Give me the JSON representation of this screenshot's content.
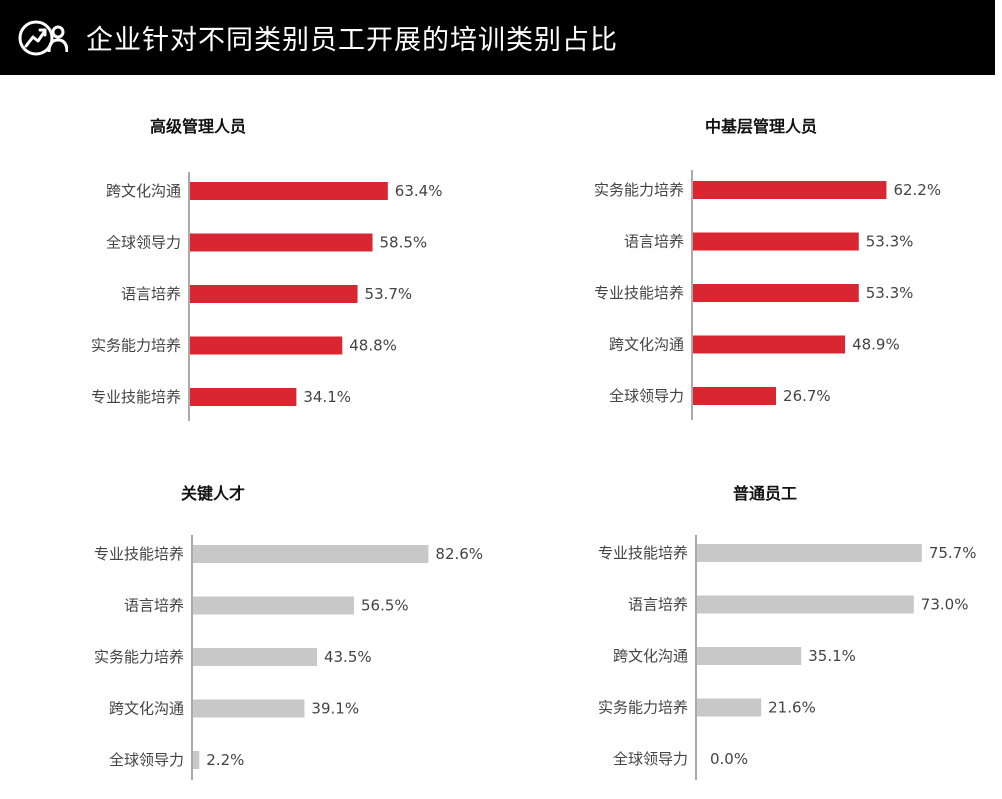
{
  "header": {
    "title": "企业针对不同类别员工开展的培训类别占比"
  },
  "colors": {
    "highlight": "#d92630",
    "neutral": "#c8c8c8",
    "header_bg": "#000000"
  },
  "chart_data": [
    {
      "type": "bar",
      "orientation": "horizontal",
      "title": "高级管理人员",
      "categories": [
        "跨文化沟通",
        "全球领导力",
        "语言培养",
        "实务能力培养",
        "专业技能培养"
      ],
      "values": [
        63.4,
        58.5,
        53.7,
        48.8,
        34.1
      ],
      "labels": [
        "63.4%",
        "58.5%",
        "53.7%",
        "48.8%",
        "34.1%"
      ],
      "color": "#d92630"
    },
    {
      "type": "bar",
      "orientation": "horizontal",
      "title": "中基层管理人员",
      "categories": [
        "实务能力培养",
        "语言培养",
        "专业技能培养",
        "跨文化沟通",
        "全球领导力"
      ],
      "values": [
        62.2,
        53.3,
        53.3,
        48.9,
        26.7
      ],
      "labels": [
        "62.2%",
        "53.3%",
        "53.3%",
        "48.9%",
        "26.7%"
      ],
      "color": "#d92630"
    },
    {
      "type": "bar",
      "orientation": "horizontal",
      "title": "关键人才",
      "categories": [
        "专业技能培养",
        "语言培养",
        "实务能力培养",
        "跨文化沟通",
        "全球领导力"
      ],
      "values": [
        82.6,
        56.5,
        43.5,
        39.1,
        2.2
      ],
      "labels": [
        "82.6%",
        "56.5%",
        "43.5%",
        "39.1%",
        "2.2%"
      ],
      "color": "#c8c8c8"
    },
    {
      "type": "bar",
      "orientation": "horizontal",
      "title": "普通员工",
      "categories": [
        "专业技能培养",
        "语言培养",
        "跨文化沟通",
        "实务能力培养",
        "全球领导力"
      ],
      "values": [
        75.7,
        73.0,
        35.1,
        21.6,
        0.0
      ],
      "labels": [
        "75.7%",
        "73.0%",
        "35.1%",
        "21.6%",
        "0.0%"
      ],
      "color": "#c8c8c8"
    }
  ]
}
